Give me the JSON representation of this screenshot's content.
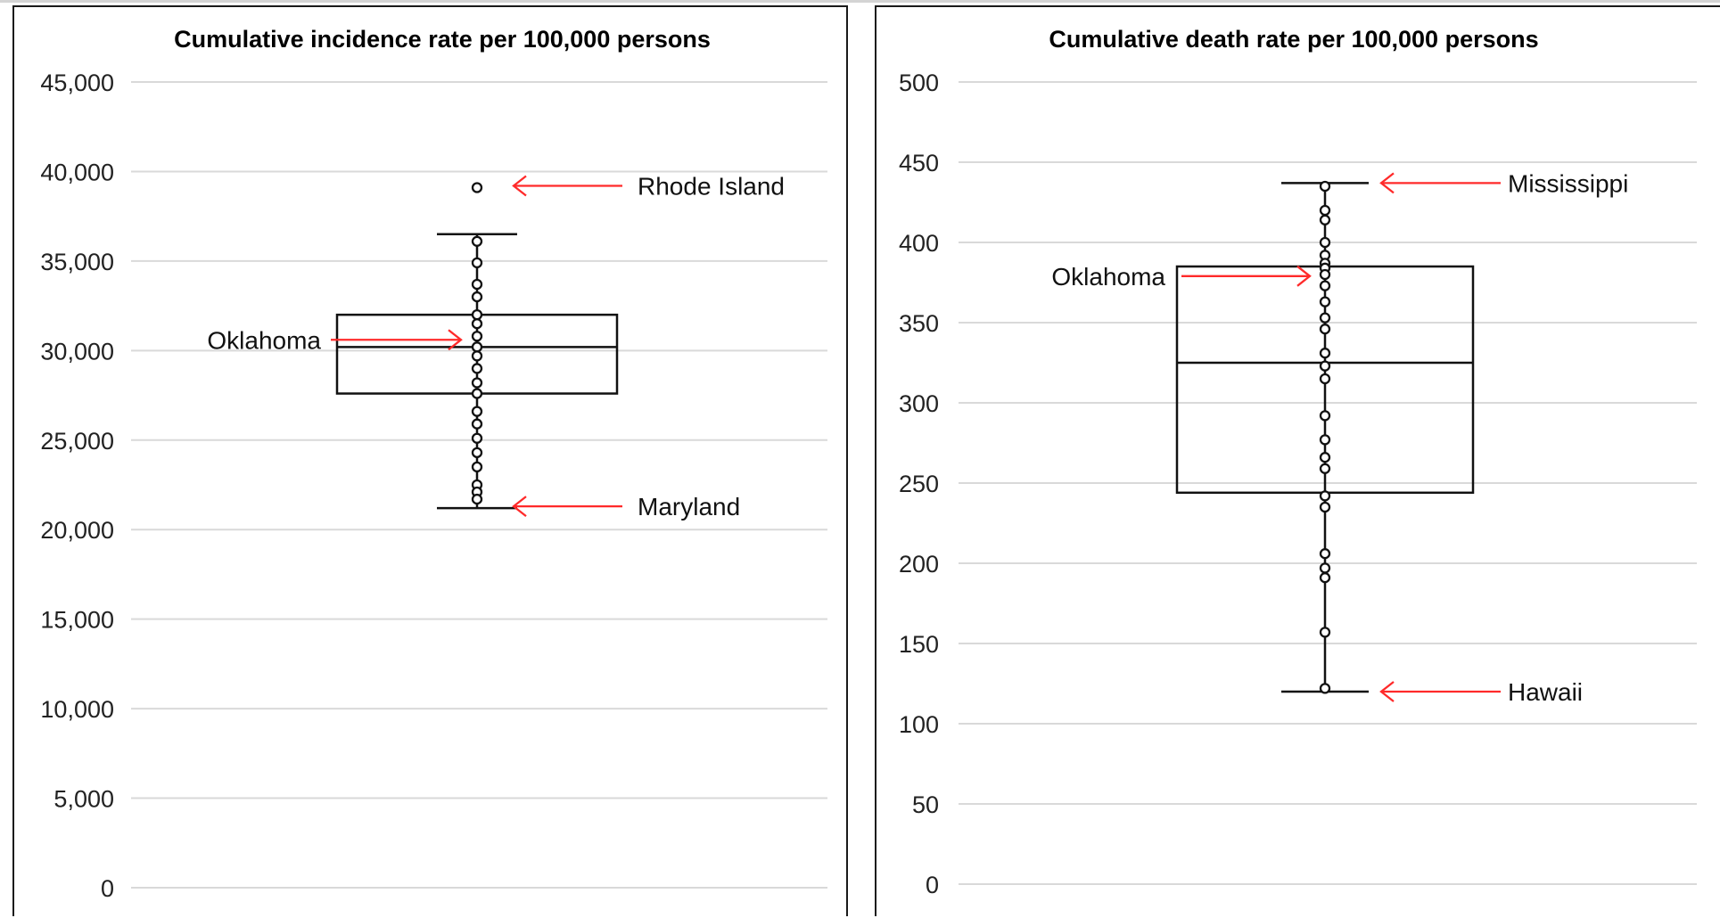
{
  "chart_data": [
    {
      "type": "box",
      "title": "Cumulative incidence rate per 100,000 persons",
      "ylim": [
        0,
        45000
      ],
      "yticks": [
        0,
        5000,
        10000,
        15000,
        20000,
        25000,
        30000,
        35000,
        40000,
        45000
      ],
      "ytick_labels": [
        "0",
        "5,000",
        "10,000",
        "15,000",
        "20,000",
        "25,000",
        "30,000",
        "35,000",
        "40,000",
        "45,000"
      ],
      "grid": true,
      "box": {
        "q1": 27600,
        "median": 30200,
        "q3": 32000,
        "whisker_low": 21200,
        "whisker_high": 36500
      },
      "points": [
        39100,
        36100,
        34900,
        33700,
        33000,
        32000,
        31500,
        30800,
        30200,
        29700,
        29000,
        28200,
        27600,
        26600,
        25900,
        25100,
        24300,
        23500,
        22500,
        22100,
        21700
      ],
      "annotations": [
        {
          "label": "Rhode Island",
          "value": 39200,
          "side": "right"
        },
        {
          "label": "Oklahoma",
          "value": 30600,
          "side": "left"
        },
        {
          "label": "Maryland",
          "value": 21300,
          "side": "right"
        }
      ]
    },
    {
      "type": "box",
      "title": "Cumulative death rate per 100,000 persons",
      "ylim": [
        0,
        500
      ],
      "yticks": [
        0,
        50,
        100,
        150,
        200,
        250,
        300,
        350,
        400,
        450,
        500
      ],
      "ytick_labels": [
        "0",
        "50",
        "100",
        "150",
        "200",
        "250",
        "300",
        "350",
        "400",
        "450",
        "500"
      ],
      "grid": true,
      "box": {
        "q1": 244,
        "median": 325,
        "q3": 385,
        "whisker_low": 120,
        "whisker_high": 437
      },
      "points": [
        435,
        420,
        414,
        400,
        392,
        387,
        384,
        380,
        373,
        363,
        353,
        346,
        331,
        323,
        315,
        292,
        277,
        266,
        259,
        242,
        235,
        206,
        197,
        191,
        157,
        122
      ],
      "annotations": [
        {
          "label": "Mississippi",
          "value": 437,
          "side": "right"
        },
        {
          "label": "Oklahoma",
          "value": 379,
          "side": "left"
        },
        {
          "label": "Hawaii",
          "value": 120,
          "side": "right"
        }
      ]
    }
  ]
}
